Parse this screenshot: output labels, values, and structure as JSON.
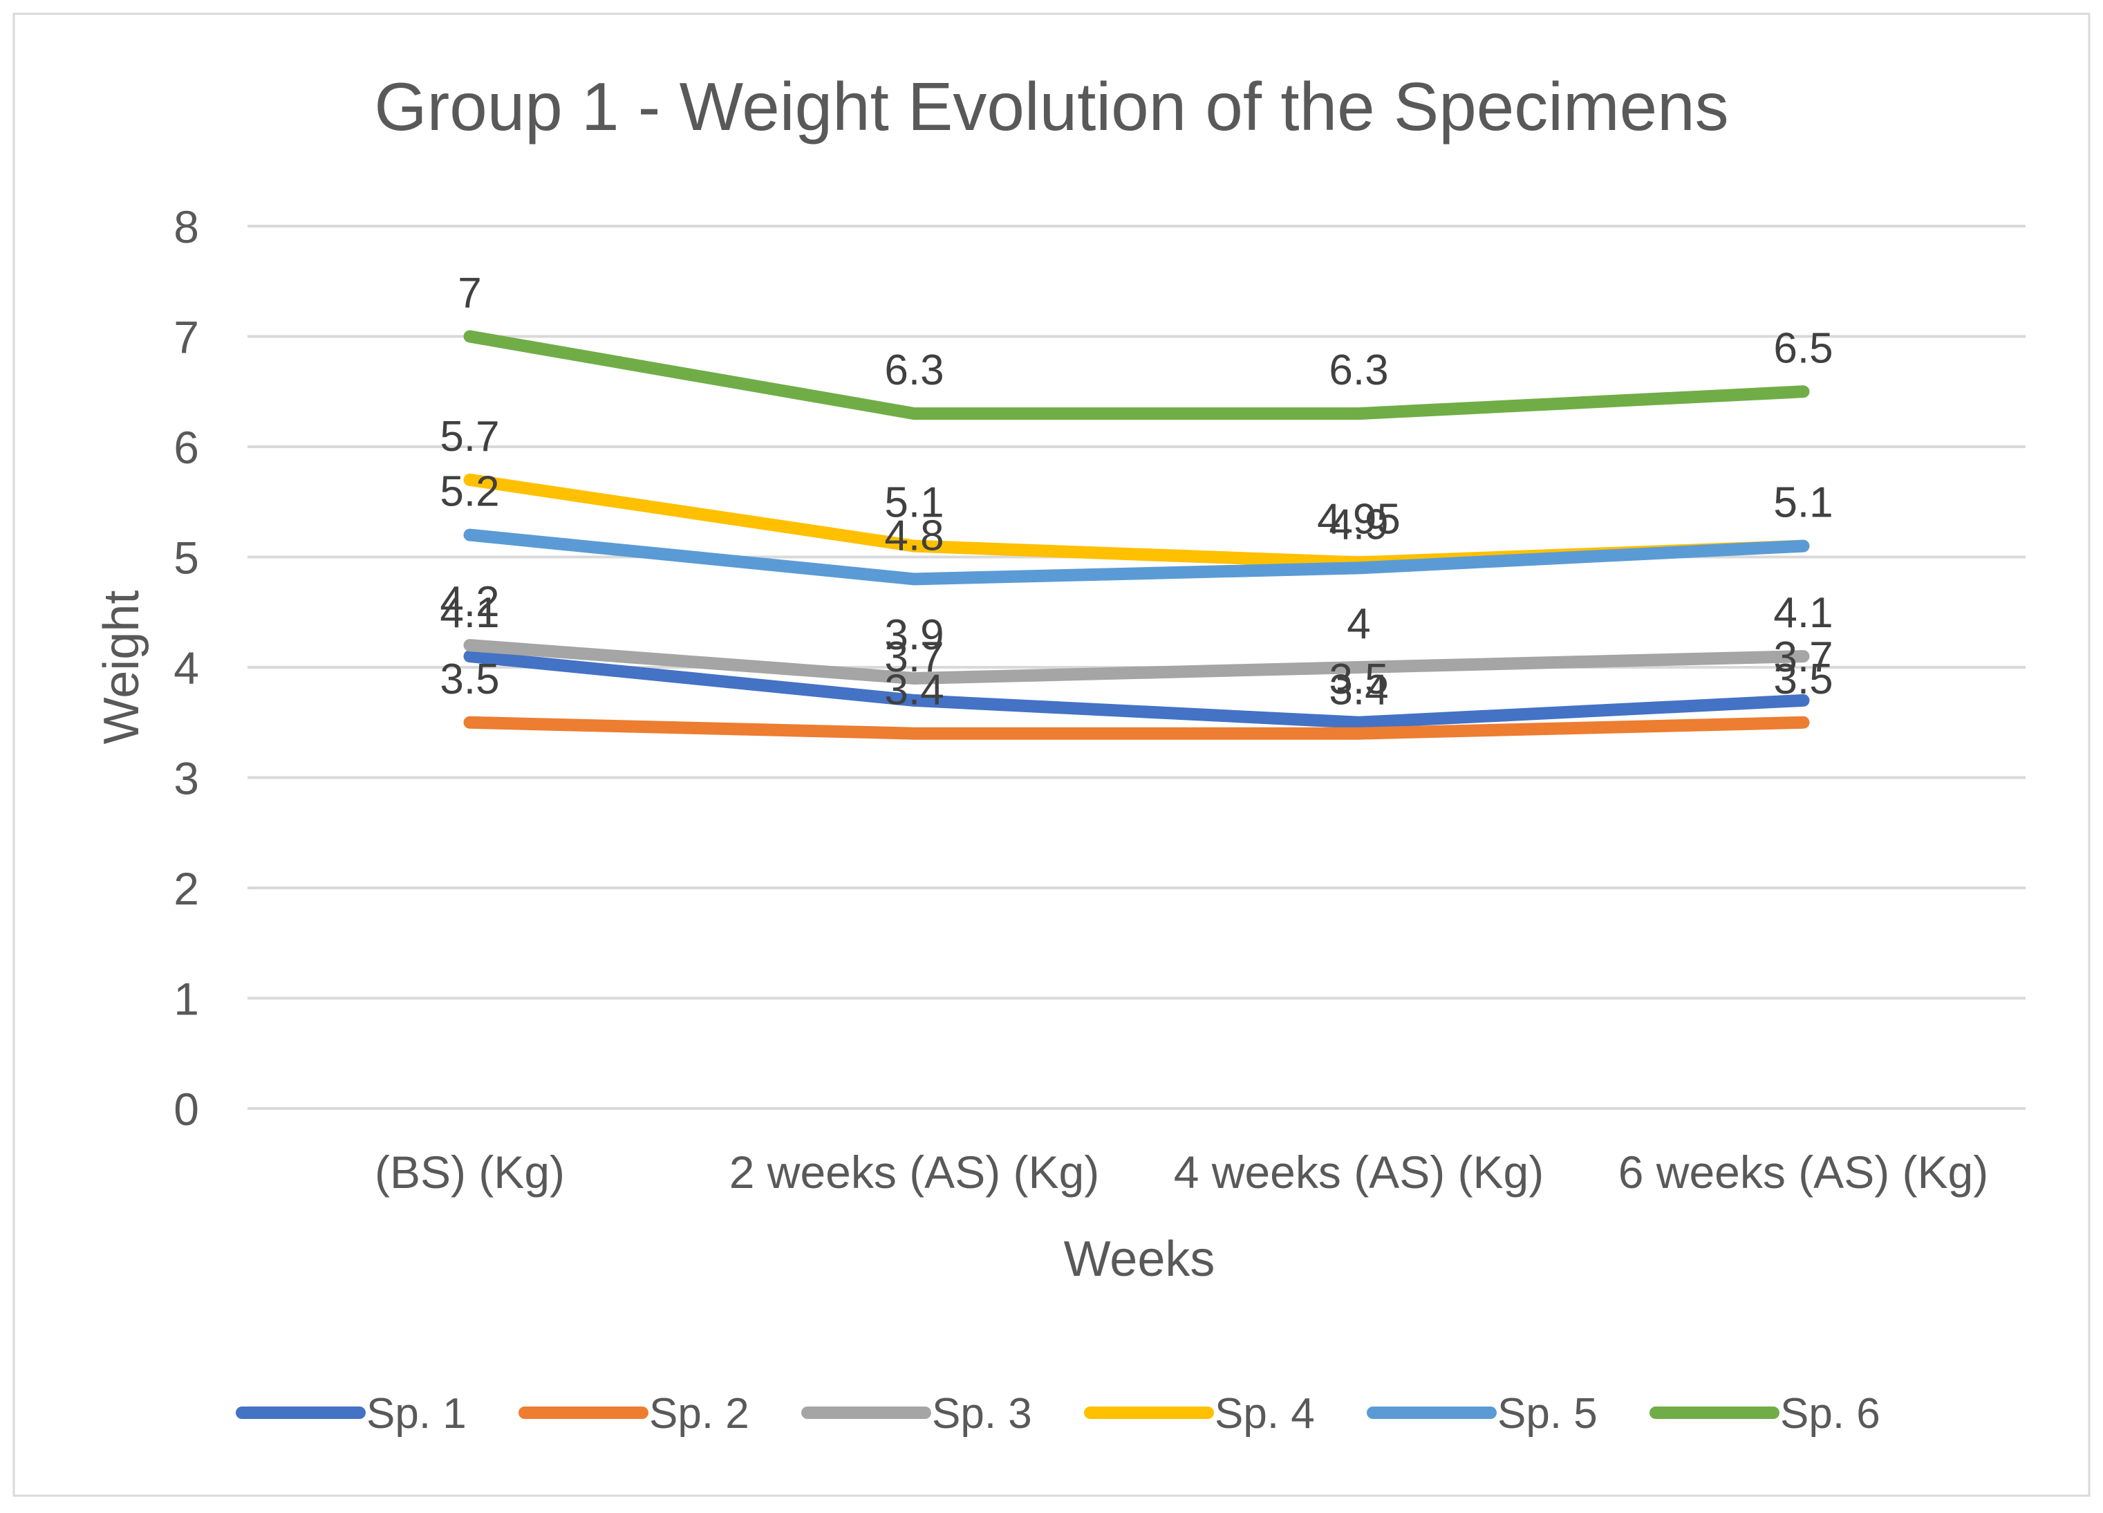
{
  "chart_data": {
    "type": "line",
    "title": "Group 1 - Weight Evolution of the Specimens",
    "xlabel": "Weeks",
    "ylabel": "Weight",
    "categories": [
      "(BS) (Kg)",
      "2 weeks (AS) (Kg)",
      "4 weeks (AS) (Kg)",
      "6 weeks (AS) (Kg)"
    ],
    "ylim": [
      0,
      8
    ],
    "yticks": [
      "0",
      "1",
      "2",
      "3",
      "4",
      "5",
      "6",
      "7",
      "8"
    ],
    "grid": true,
    "legend_position": "bottom",
    "series": [
      {
        "name": "Sp. 1",
        "color": "#4472C4",
        "values": [
          4.1,
          3.7,
          3.5,
          3.7
        ],
        "labels": [
          "4.1",
          "3.7",
          "3.5",
          "3.7"
        ]
      },
      {
        "name": "Sp. 2",
        "color": "#ED7D31",
        "values": [
          3.5,
          3.4,
          3.4,
          3.5
        ],
        "labels": [
          "3.5",
          "3.4",
          "3.4",
          "3.5"
        ]
      },
      {
        "name": "Sp. 3",
        "color": "#A5A5A5",
        "values": [
          4.2,
          3.9,
          4,
          4.1
        ],
        "labels": [
          "4.2",
          "3.9",
          "4",
          "4.1"
        ]
      },
      {
        "name": "Sp. 4",
        "color": "#FFC000",
        "values": [
          5.7,
          5.1,
          4.95,
          5.1
        ],
        "labels": [
          "5.7",
          "5.1",
          "4.95",
          "5.1"
        ]
      },
      {
        "name": "Sp. 5",
        "color": "#5B9BD5",
        "values": [
          5.2,
          4.8,
          4.9,
          5.1
        ],
        "labels": [
          "5.2",
          "4.8",
          "4.9",
          "5.1"
        ]
      },
      {
        "name": "Sp. 6",
        "color": "#70AD47",
        "values": [
          7,
          6.3,
          6.3,
          6.5
        ],
        "labels": [
          "7",
          "6.3",
          "6.3",
          "6.5"
        ]
      }
    ]
  }
}
